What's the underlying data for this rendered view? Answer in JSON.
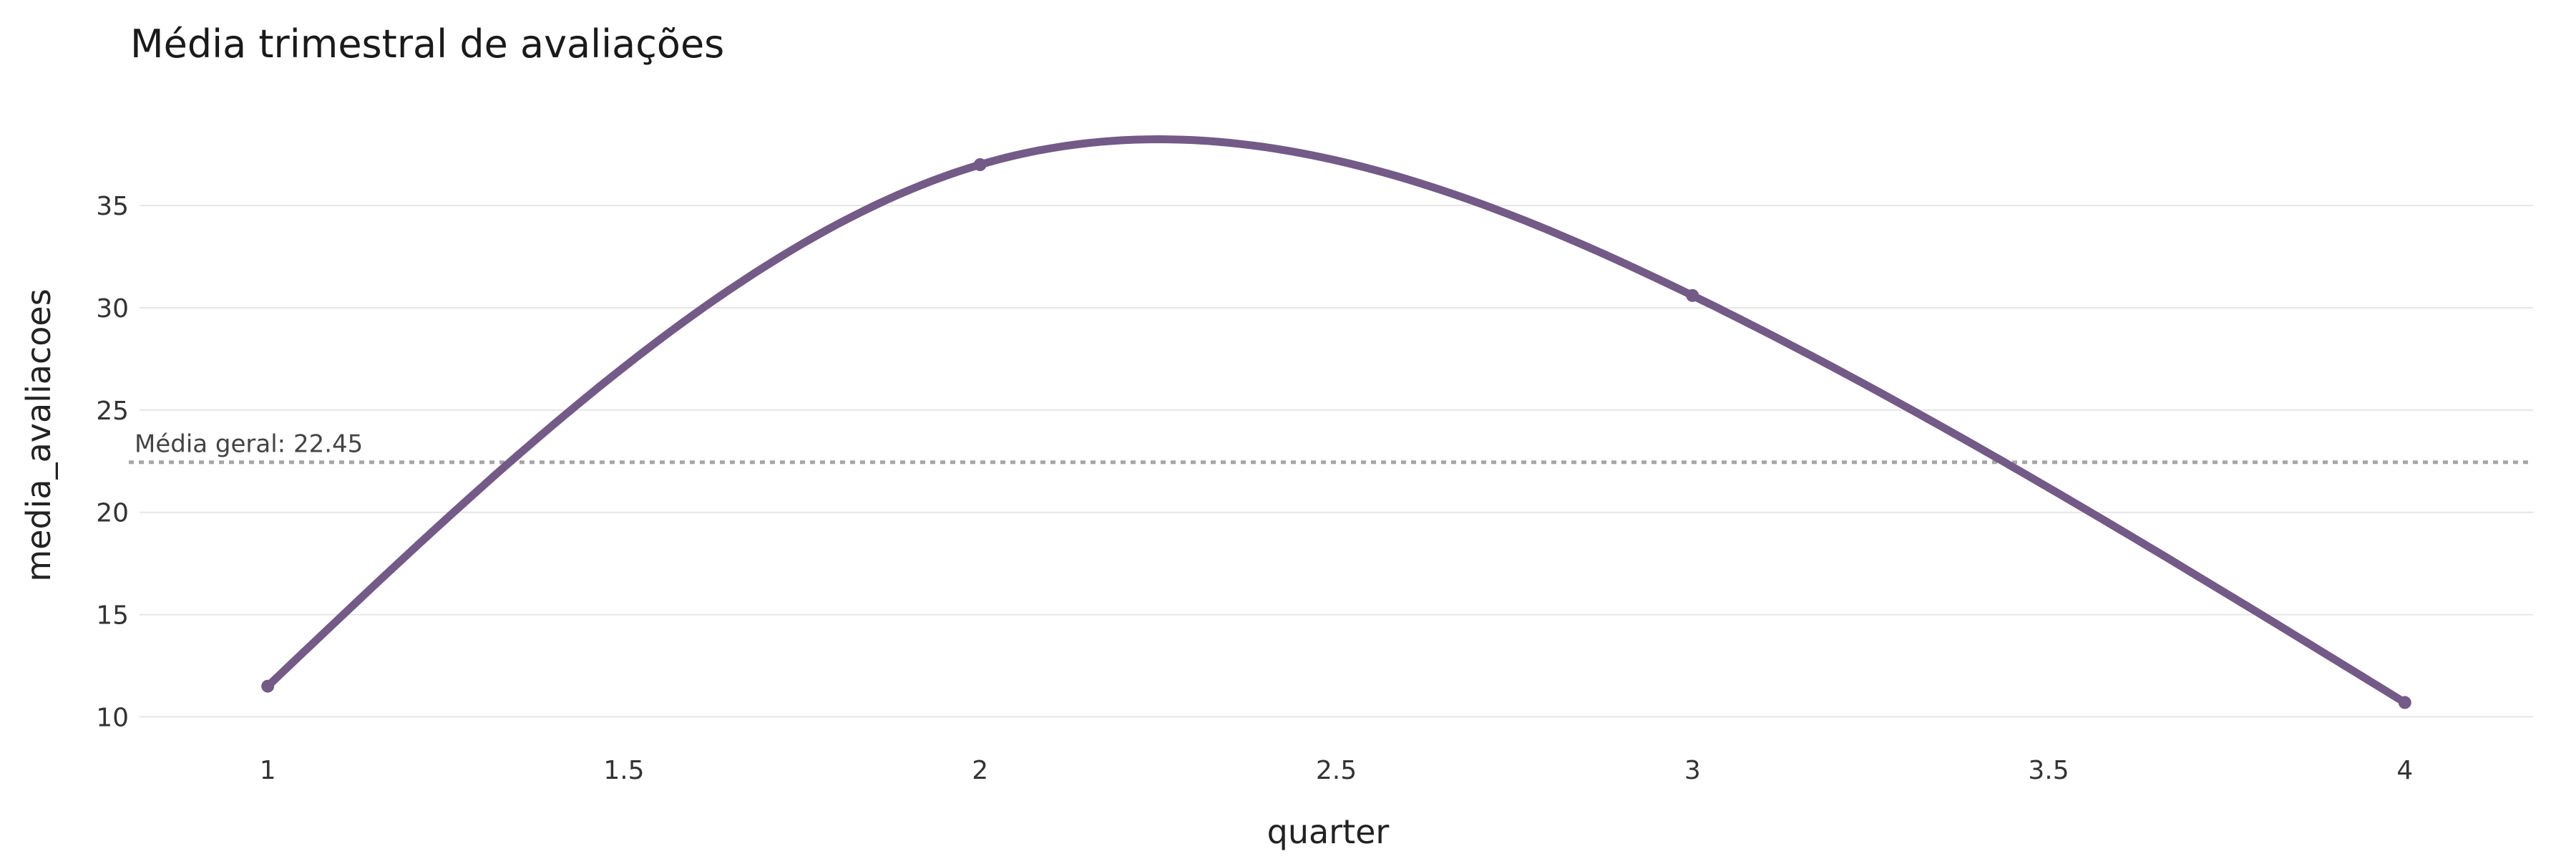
{
  "chart_data": {
    "type": "line",
    "title": "Média trimestral de avaliações",
    "xlabel": "quarter",
    "ylabel": "media_avaliacoes",
    "x": [
      1,
      2,
      3,
      4
    ],
    "series": [
      {
        "values": [
          11.5,
          37.0,
          30.6,
          10.7
        ]
      }
    ],
    "smooth": true,
    "xlim": [
      0.82,
      4.18
    ],
    "ylim": [
      9.0,
      39.8
    ],
    "x_ticks": [
      1,
      1.5,
      2,
      2.5,
      3,
      3.5,
      4
    ],
    "x_tick_labels": [
      "1",
      "1.5",
      "2",
      "2.5",
      "3",
      "3.5",
      "4"
    ],
    "y_ticks": [
      10,
      15,
      20,
      25,
      30,
      35
    ],
    "y_tick_labels": [
      "10",
      "15",
      "20",
      "25",
      "30",
      "35"
    ],
    "reference_line": {
      "value": 22.45,
      "label": "Média geral: 22.45",
      "style": "dotted"
    },
    "grid": "horizontal",
    "legend": "none",
    "colors": {
      "line": "#735a87",
      "reference": "#a6a6a6",
      "grid": "#e6e6e6"
    }
  }
}
